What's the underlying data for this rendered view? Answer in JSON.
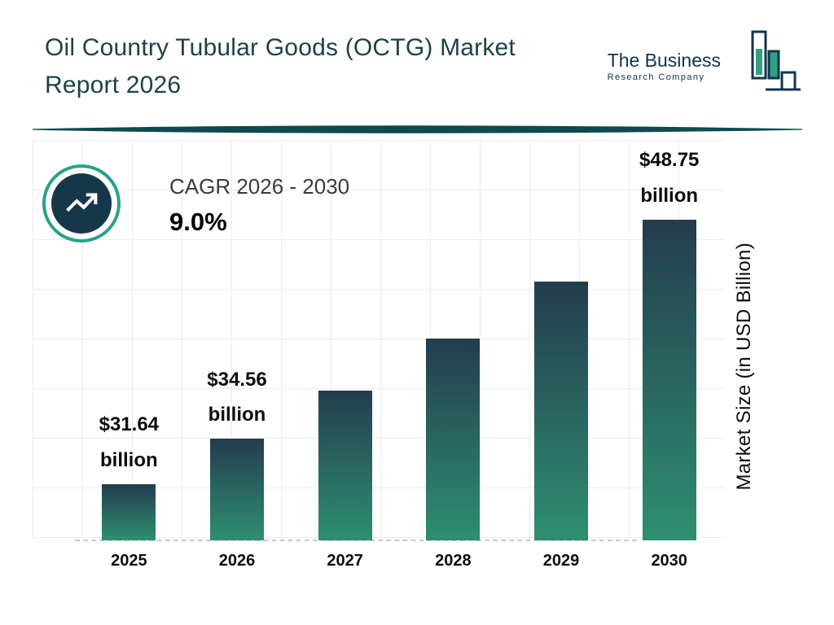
{
  "header": {
    "title": "Oil Country Tubular Goods (OCTG) Market Report 2026"
  },
  "logo": {
    "line1": "The Business",
    "line2": "Research Company"
  },
  "cagr": {
    "label": "CAGR 2026 - 2030",
    "value": "9.0%"
  },
  "chart_data": {
    "type": "bar",
    "title": "Oil Country Tubular Goods (OCTG) Market Report 2026",
    "categories": [
      "2025",
      "2026",
      "2027",
      "2028",
      "2029",
      "2030"
    ],
    "values": [
      31.64,
      34.56,
      37.67,
      41.06,
      44.76,
      48.75
    ],
    "bar_labels": [
      {
        "amount": "$31.64",
        "unit": "billion"
      },
      {
        "amount": "$34.56",
        "unit": "billion"
      },
      null,
      null,
      null,
      {
        "amount": "$48.75",
        "unit": "billion"
      }
    ],
    "xlabel": "",
    "ylabel": "Market Size (in USD Billion)",
    "ylim": [
      28,
      50
    ],
    "grid": true,
    "legend": false
  },
  "colors": {
    "title_color": "#1d4247",
    "logo_navy": "#12344d",
    "logo_teal": "#2fa183",
    "divider_teal": "#0d4b4d",
    "accent_teal": "#2aa189",
    "badge_navy": "#16374a",
    "bar_top": "#243c4e",
    "bar_bottom": "#2e8f70"
  }
}
